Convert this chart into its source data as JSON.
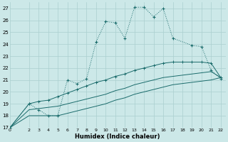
{
  "xlabel": "Humidex (Indice chaleur)",
  "bg_color": "#cce8e8",
  "grid_color": "#aacfcf",
  "line_color": "#1a6b6b",
  "xlim": [
    0,
    22.5
  ],
  "ylim": [
    17,
    27.5
  ],
  "xticks": [
    0,
    2,
    3,
    4,
    5,
    6,
    7,
    8,
    9,
    10,
    11,
    12,
    13,
    14,
    15,
    16,
    17,
    18,
    19,
    20,
    21,
    22
  ],
  "yticks": [
    17,
    18,
    19,
    20,
    21,
    22,
    23,
    24,
    25,
    26,
    27
  ],
  "line1_x": [
    0,
    2,
    3,
    4,
    5,
    6,
    7,
    8,
    9,
    10,
    11,
    12,
    13,
    14,
    15,
    16,
    17,
    19,
    20,
    21,
    22
  ],
  "line1_y": [
    17,
    19,
    18.5,
    18.0,
    18.0,
    21.0,
    20.7,
    21.1,
    24.2,
    25.9,
    25.8,
    24.5,
    27.1,
    27.1,
    26.3,
    27.0,
    24.5,
    23.9,
    23.8,
    21.8,
    21.1
  ],
  "line2_x": [
    0,
    2,
    3,
    4,
    5,
    6,
    7,
    8,
    9,
    10,
    11,
    12,
    13,
    14,
    15,
    16,
    17,
    18,
    19,
    20,
    21,
    22
  ],
  "line2_y": [
    17,
    19.0,
    19.2,
    19.3,
    19.6,
    19.9,
    20.2,
    20.5,
    20.8,
    21.0,
    21.3,
    21.5,
    21.8,
    22.0,
    22.2,
    22.4,
    22.5,
    22.5,
    22.5,
    22.5,
    22.4,
    21.2
  ],
  "line3_x": [
    0,
    2,
    3,
    4,
    5,
    6,
    7,
    8,
    9,
    10,
    11,
    12,
    13,
    14,
    15,
    16,
    17,
    18,
    19,
    20,
    21,
    22
  ],
  "line3_y": [
    17,
    18.5,
    18.6,
    18.7,
    18.8,
    19.0,
    19.2,
    19.4,
    19.6,
    19.8,
    20.1,
    20.3,
    20.6,
    20.8,
    21.0,
    21.2,
    21.3,
    21.4,
    21.5,
    21.6,
    21.7,
    21.2
  ],
  "line4_x": [
    0,
    2,
    3,
    4,
    5,
    6,
    7,
    8,
    9,
    10,
    11,
    12,
    13,
    14,
    15,
    16,
    17,
    18,
    19,
    20,
    21,
    22
  ],
  "line4_y": [
    17,
    18.0,
    18.0,
    18.0,
    18.0,
    18.2,
    18.4,
    18.6,
    18.8,
    19.0,
    19.3,
    19.5,
    19.8,
    20.0,
    20.2,
    20.4,
    20.6,
    20.7,
    20.8,
    20.9,
    21.0,
    21.2
  ]
}
